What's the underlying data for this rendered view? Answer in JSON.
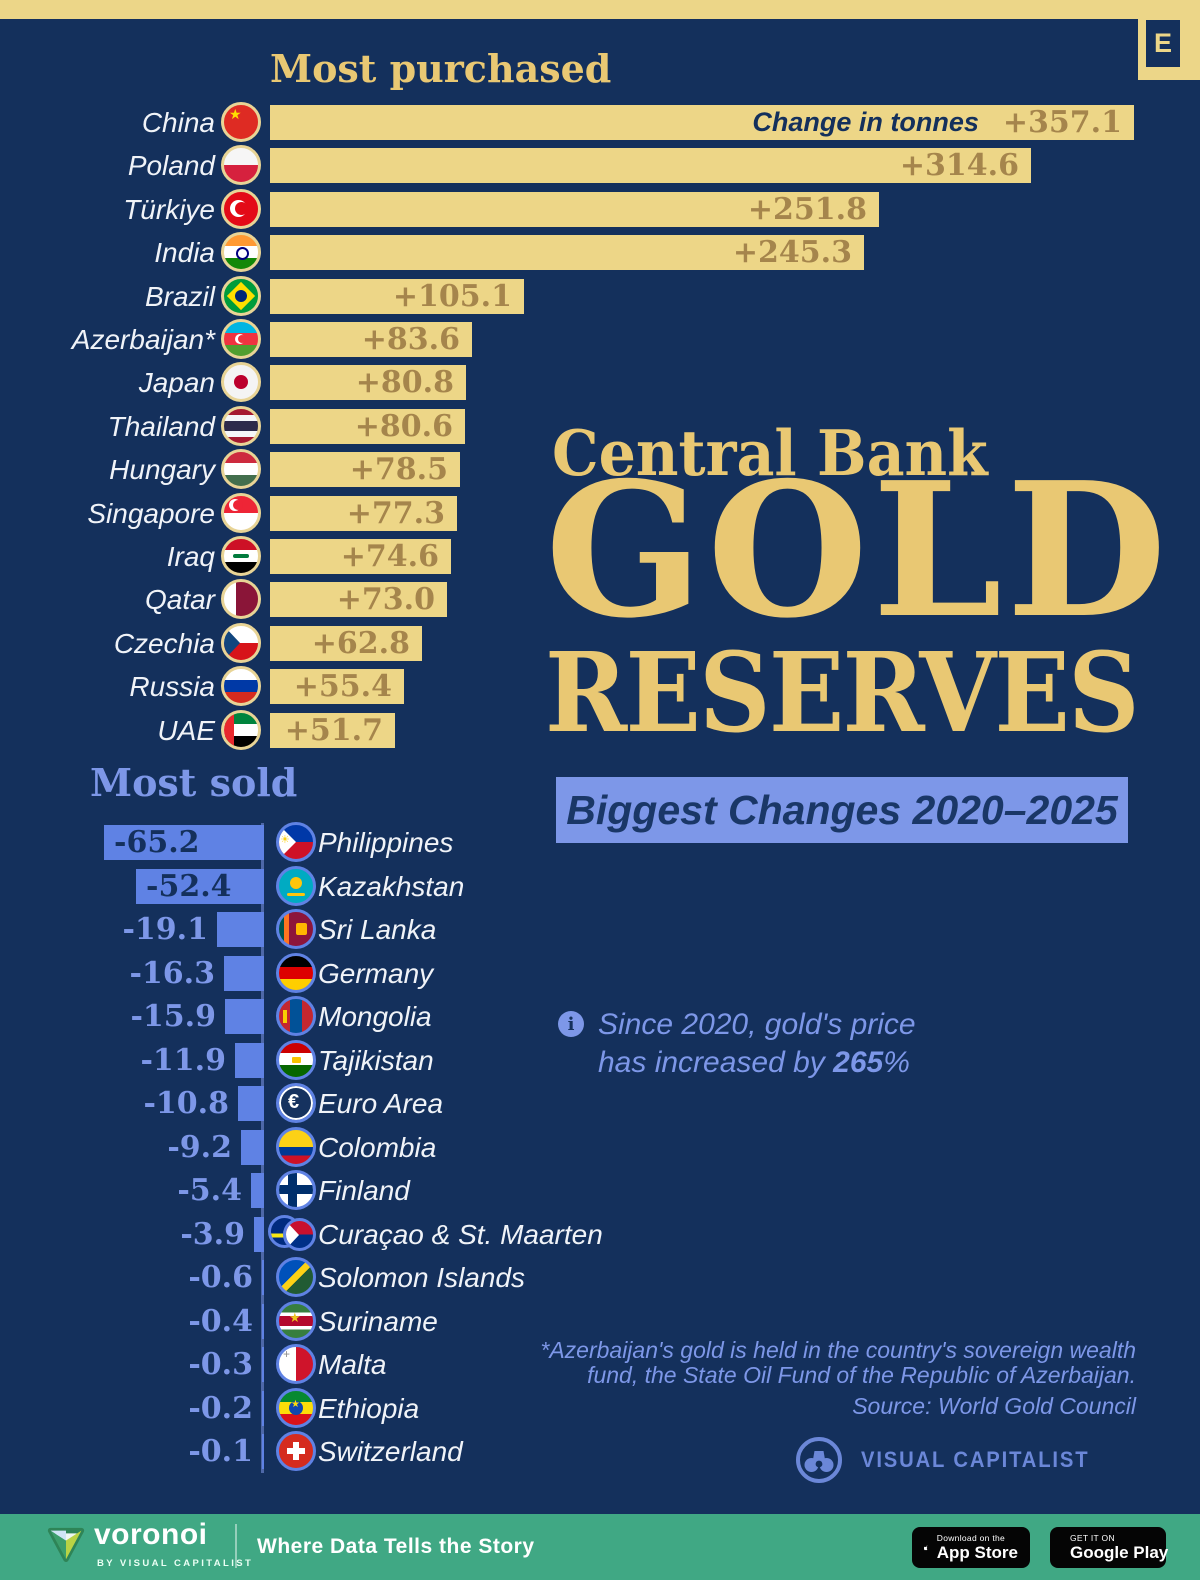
{
  "colors": {
    "background": "#14305c",
    "gold_bar": "#edd687",
    "gold_text": "#e9c873",
    "bronze_value": "#a5854c",
    "periwinkle": "#7d97e8",
    "sold_bar": "#5f82e4",
    "footer_green": "#40a884"
  },
  "brand": {
    "corner_letter": "E",
    "visual_capitalist": "VISUAL CAPITALIST"
  },
  "title": {
    "kicker": "Central Bank",
    "line1": "GOLD",
    "line2": "RESERVES",
    "badge": "Biggest Changes 2020–2025"
  },
  "purchased": {
    "heading": "Most purchased",
    "bar_label": "Change in tonnes",
    "rows": [
      {
        "country": "China",
        "flag": "china",
        "change": 357.1
      },
      {
        "country": "Poland",
        "flag": "poland",
        "change": 314.6
      },
      {
        "country": "Türkiye",
        "flag": "turkiye",
        "change": 251.8
      },
      {
        "country": "India",
        "flag": "india",
        "change": 245.3
      },
      {
        "country": "Brazil",
        "flag": "brazil",
        "change": 105.1
      },
      {
        "country": "Azerbaijan*",
        "flag": "azerbaijan",
        "change": 83.6
      },
      {
        "country": "Japan",
        "flag": "japan",
        "change": 80.8
      },
      {
        "country": "Thailand",
        "flag": "thailand",
        "change": 80.6
      },
      {
        "country": "Hungary",
        "flag": "hungary",
        "change": 78.5
      },
      {
        "country": "Singapore",
        "flag": "singapore",
        "change": 77.3
      },
      {
        "country": "Iraq",
        "flag": "iraq",
        "change": 74.6
      },
      {
        "country": "Qatar",
        "flag": "qatar",
        "change": 73.0
      },
      {
        "country": "Czechia",
        "flag": "czechia",
        "change": 62.8
      },
      {
        "country": "Russia",
        "flag": "russia",
        "change": 55.4
      },
      {
        "country": "UAE",
        "flag": "uae",
        "change": 51.7
      }
    ]
  },
  "sold": {
    "heading": "Most sold",
    "rows": [
      {
        "country": "Philippines",
        "flag": "philippines",
        "change": -65.2
      },
      {
        "country": "Kazakhstan",
        "flag": "kazakhstan",
        "change": -52.4
      },
      {
        "country": "Sri Lanka",
        "flag": "srilanka",
        "change": -19.1
      },
      {
        "country": "Germany",
        "flag": "germany",
        "change": -16.3
      },
      {
        "country": "Mongolia",
        "flag": "mongolia",
        "change": -15.9
      },
      {
        "country": "Tajikistan",
        "flag": "tajikistan",
        "change": -11.9
      },
      {
        "country": "Euro Area",
        "flag": "euro",
        "change": -10.8
      },
      {
        "country": "Colombia",
        "flag": "colombia",
        "change": -9.2
      },
      {
        "country": "Finland",
        "flag": "finland",
        "change": -5.4
      },
      {
        "country": "Curaçao & St. Maarten",
        "flag": "curacao-stmaarten",
        "change": -3.9
      },
      {
        "country": "Solomon Islands",
        "flag": "solomon",
        "change": -0.6
      },
      {
        "country": "Suriname",
        "flag": "suriname",
        "change": -0.4
      },
      {
        "country": "Malta",
        "flag": "malta",
        "change": -0.3
      },
      {
        "country": "Ethiopia",
        "flag": "ethiopia",
        "change": -0.2
      },
      {
        "country": "Switzerland",
        "flag": "switzerland",
        "change": -0.1
      }
    ]
  },
  "note": {
    "info_icon": "i",
    "line1": "Since 2020, gold's price",
    "line2_prefix": "has increased by ",
    "line2_bold": "265",
    "line2_suffix": "%"
  },
  "footnote": {
    "line1": "*Azerbaijan's gold is held in the country's sovereign wealth",
    "line2": "fund, the State Oil Fund of the Republic of Azerbaijan.",
    "source": "Source: World Gold Council"
  },
  "footer": {
    "logo_text": "voronoi",
    "logo_sub": "BY VISUAL CAPITALIST",
    "tagline": "Where Data Tells the Story",
    "appstore_line1": "Download on the",
    "appstore_line2": "App Store",
    "gplay_line1": "GET IT ON",
    "gplay_line2": "Google Play"
  },
  "chart_data": [
    {
      "type": "bar",
      "orientation": "horizontal",
      "title": "Most purchased",
      "unit": "tonnes",
      "value_label": "Change in tonnes",
      "legend_position": "none",
      "grid": false,
      "categories": [
        "China",
        "Poland",
        "Türkiye",
        "India",
        "Brazil",
        "Azerbaijan*",
        "Japan",
        "Thailand",
        "Hungary",
        "Singapore",
        "Iraq",
        "Qatar",
        "Czechia",
        "Russia",
        "UAE"
      ],
      "values": [
        357.1,
        314.6,
        251.8,
        245.3,
        105.1,
        83.6,
        80.8,
        80.6,
        78.5,
        77.3,
        74.6,
        73.0,
        62.8,
        55.4,
        51.7
      ],
      "xlim": [
        0,
        357.1
      ]
    },
    {
      "type": "bar",
      "orientation": "horizontal",
      "title": "Most sold",
      "unit": "tonnes",
      "legend_position": "none",
      "grid": false,
      "categories": [
        "Philippines",
        "Kazakhstan",
        "Sri Lanka",
        "Germany",
        "Mongolia",
        "Tajikistan",
        "Euro Area",
        "Colombia",
        "Finland",
        "Curaçao & St. Maarten",
        "Solomon Islands",
        "Suriname",
        "Malta",
        "Ethiopia",
        "Switzerland"
      ],
      "values": [
        -65.2,
        -52.4,
        -19.1,
        -16.3,
        -15.9,
        -11.9,
        -10.8,
        -9.2,
        -5.4,
        -3.9,
        -0.6,
        -0.4,
        -0.3,
        -0.2,
        -0.1
      ],
      "xlim": [
        -65.2,
        0
      ]
    }
  ]
}
